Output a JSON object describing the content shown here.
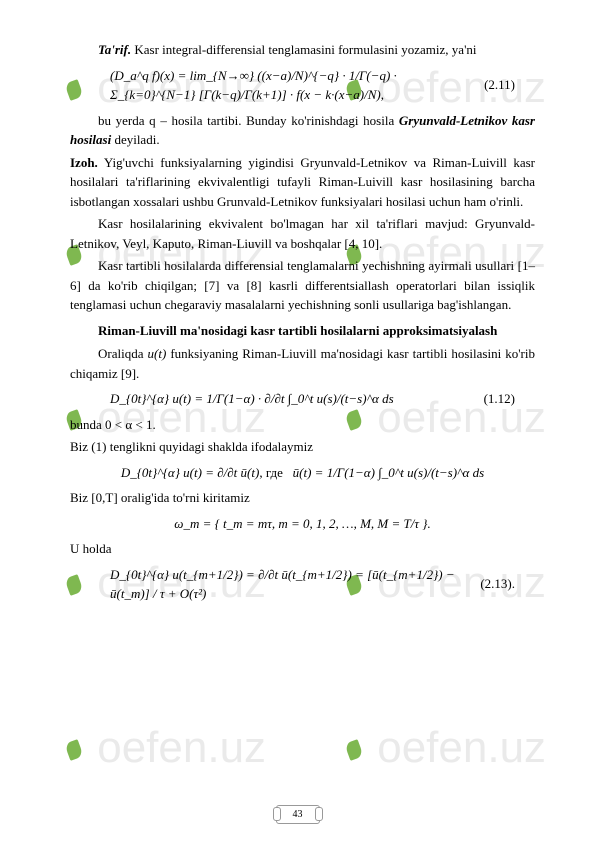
{
  "watermark_text": "oefen.uz",
  "p1_prefix": "Ta'rif.",
  "p1": " Kasr integral-differensial tenglamasini formulasini yozamiz, ya'ni",
  "eq211": "(D_a^q f)(x) = lim_{N→∞} ((x−a)/N)^{−q} · 1/Γ(−q) · Σ_{k=0}^{N−1} [Γ(k−q)/Γ(k+1)] · f(x − k·(x−a)/N),",
  "eq211_num": "(2.11)",
  "p2a": "bu yerda q – hosila tartibi. Bunday ko'rinishdagi hosila ",
  "p2b": "Gryunvald-Letnikov kasr hosilasi",
  "p2c": " deyiladi.",
  "p3_prefix": "Izoh.",
  "p3": " Yig'uvchi funksiyalarning yigindisi Gryunvald-Letnikov va Riman-Luivill kasr hosilalari ta'riflarining ekvivalentligi tufayli Riman-Luivill kasr hosilasining barcha isbotlangan xossalari ushbu Grunvald-Letnikov funksiyalari hosilasi uchun ham o'rinli.",
  "p4": "Kasr hosilalarining ekvivalent bo'lmagan har xil ta'riflari mavjud: Gryunvald-Letnikov, Veyl, Kaputo, Riman-Liuvill va boshqalar [4, 10].",
  "p5": "Kasr tartibli hosilalarda differensial tenglamalarni yechishning ayirmali usullari [1–6] da ko'rib chiqilgan; [7] va [8] kasrli differentsiallash operatorlari bilan issiqlik tenglamasi uchun chegaraviy masalalarni yechishning sonli usullariga bag'ishlangan.",
  "h1": "Riman-Liuvill ma'nosidagi kasr tartibli hosilalarni approksimatsiyalash",
  "p6a": "Oraliqda ",
  "p6b": "u(t)",
  "p6c": " funksiyaning Riman-Liuvill ma'nosidagi kasr tartibli hosilasini ko'rib chiqamiz [9].",
  "eq112": "D_{0t}^{α} u(t) = 1/Γ(1−α) · ∂/∂t ∫_0^t u(s)/(t−s)^α ds",
  "eq112_num": "(1.12)",
  "p7": "bunda 0 < α < 1.",
  "p8": "Biz (1) tenglikni quyidagi shaklda ifodalaymiz",
  "eq_mid_left": "D_{0t}^{α} u(t) = ∂/∂t ū(t)",
  "eq_mid_sep": ", где",
  "eq_mid_right": "ū(t) = 1/Γ(1−α) ∫_0^t u(s)/(t−s)^α ds",
  "p9": "Biz [0,T] oralig'ida to'rni kiritamiz",
  "eq_omega": "ω_m = { t_m = mτ, m = 0, 1, 2, …, M,  M = T/τ }.",
  "p10": "U holda",
  "eq213": "D_{0t}^{α} u(t_{m+1/2}) = ∂/∂t ū(t_{m+1/2}) = [ū(t_{m+1/2}) − ū(t_m)] / τ + O(τ²)",
  "eq213_num": "(2.13).",
  "page_num": "43"
}
